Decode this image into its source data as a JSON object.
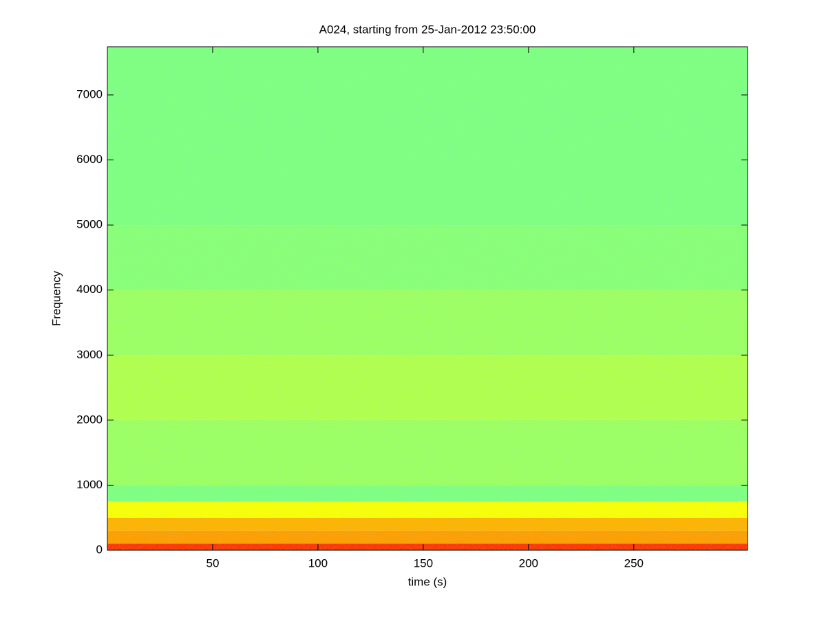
{
  "chart_data": {
    "type": "spectrogram",
    "title": "A024, starting from 25-Jan-2012 23:50:00",
    "xlabel": "time (s)",
    "ylabel": "Frequency",
    "xlim": [
      0,
      304
    ],
    "ylim": [
      0,
      7740
    ],
    "xticks": [
      50,
      100,
      150,
      200,
      250
    ],
    "yticks": [
      0,
      1000,
      2000,
      3000,
      4000,
      5000,
      6000,
      7000
    ],
    "colormap": "jet",
    "clim": [
      0,
      1
    ],
    "freq_edges": [
      0,
      100,
      300,
      500,
      750,
      1000,
      2000,
      3000,
      4000,
      5000,
      7740
    ],
    "levels": [
      0.82,
      0.72,
      0.7,
      0.62,
      0.5,
      0.53,
      0.55,
      0.53,
      0.51,
      0.5
    ]
  }
}
